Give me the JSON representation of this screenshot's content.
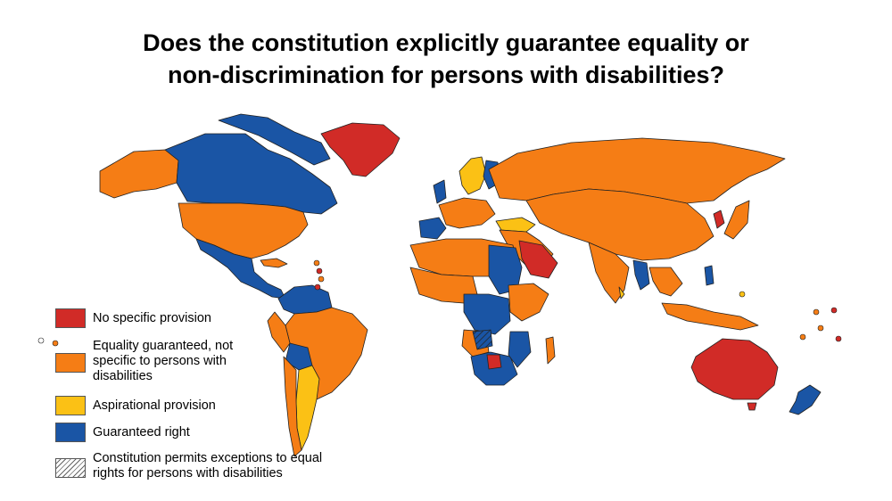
{
  "title": {
    "line1": "Does the constitution explicitly guarantee equality or",
    "line2": "non-discrimination for persons with disabilities?"
  },
  "colors": {
    "no_provision": "#d12b27",
    "equality_general": "#f57d15",
    "aspirational": "#fbc115",
    "guaranteed": "#1a55a5",
    "border": "#222222"
  },
  "legend": [
    {
      "key": "no_provision",
      "label": "No specific provision"
    },
    {
      "key": "equality_general",
      "label": "Equality guaranteed, not specific to persons with disabilities"
    },
    {
      "key": "aspirational",
      "label": "Aspirational provision"
    },
    {
      "key": "guaranteed",
      "label": "Guaranteed right"
    },
    {
      "key": "exceptions",
      "label": "Constitution permits exceptions to equal rights for persons with disabilities"
    }
  ]
}
